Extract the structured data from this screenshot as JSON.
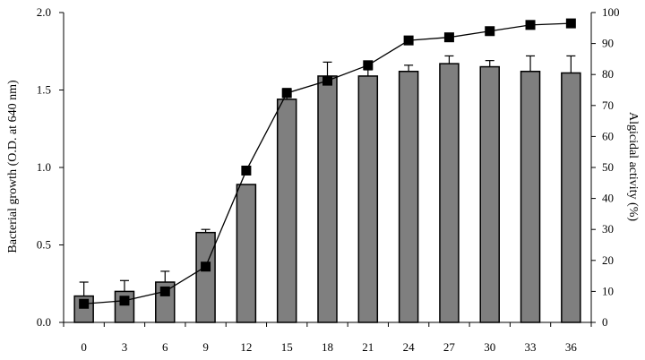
{
  "chart_data": {
    "type": "bar",
    "x": [
      "0",
      "3",
      "6",
      "9",
      "12",
      "15",
      "18",
      "21",
      "24",
      "27",
      "30",
      "33",
      "36"
    ],
    "series": [
      {
        "type": "bar",
        "axis": "left",
        "values": [
          0.17,
          0.2,
          0.26,
          0.58,
          0.89,
          1.44,
          1.59,
          1.59,
          1.62,
          1.67,
          1.65,
          1.62,
          1.61
        ],
        "errors": [
          0.09,
          0.07,
          0.07,
          0.02,
          0.0,
          0.07,
          0.09,
          0.04,
          0.04,
          0.05,
          0.04,
          0.1,
          0.11
        ],
        "color": "#7f7f7f"
      },
      {
        "type": "line",
        "axis": "right",
        "marker": "square",
        "values": [
          6,
          7,
          10,
          18,
          49,
          74,
          78,
          83,
          91,
          92,
          94,
          96,
          96.5
        ],
        "color": "#000000"
      }
    ],
    "ylabel_left": "Bacterial growth (O.D. at 640 nm)",
    "ylabel_right": "Algicidal activity (%)",
    "ylim_left": [
      0,
      2
    ],
    "ylim_right": [
      0,
      100
    ],
    "yticks_left": [
      "0.0",
      "0.5",
      "1.0",
      "1.5",
      "2.0"
    ],
    "yticks_right": [
      "0",
      "10",
      "20",
      "30",
      "40",
      "50",
      "60",
      "70",
      "80",
      "90",
      "100"
    ],
    "grid": false,
    "legend": "none"
  }
}
